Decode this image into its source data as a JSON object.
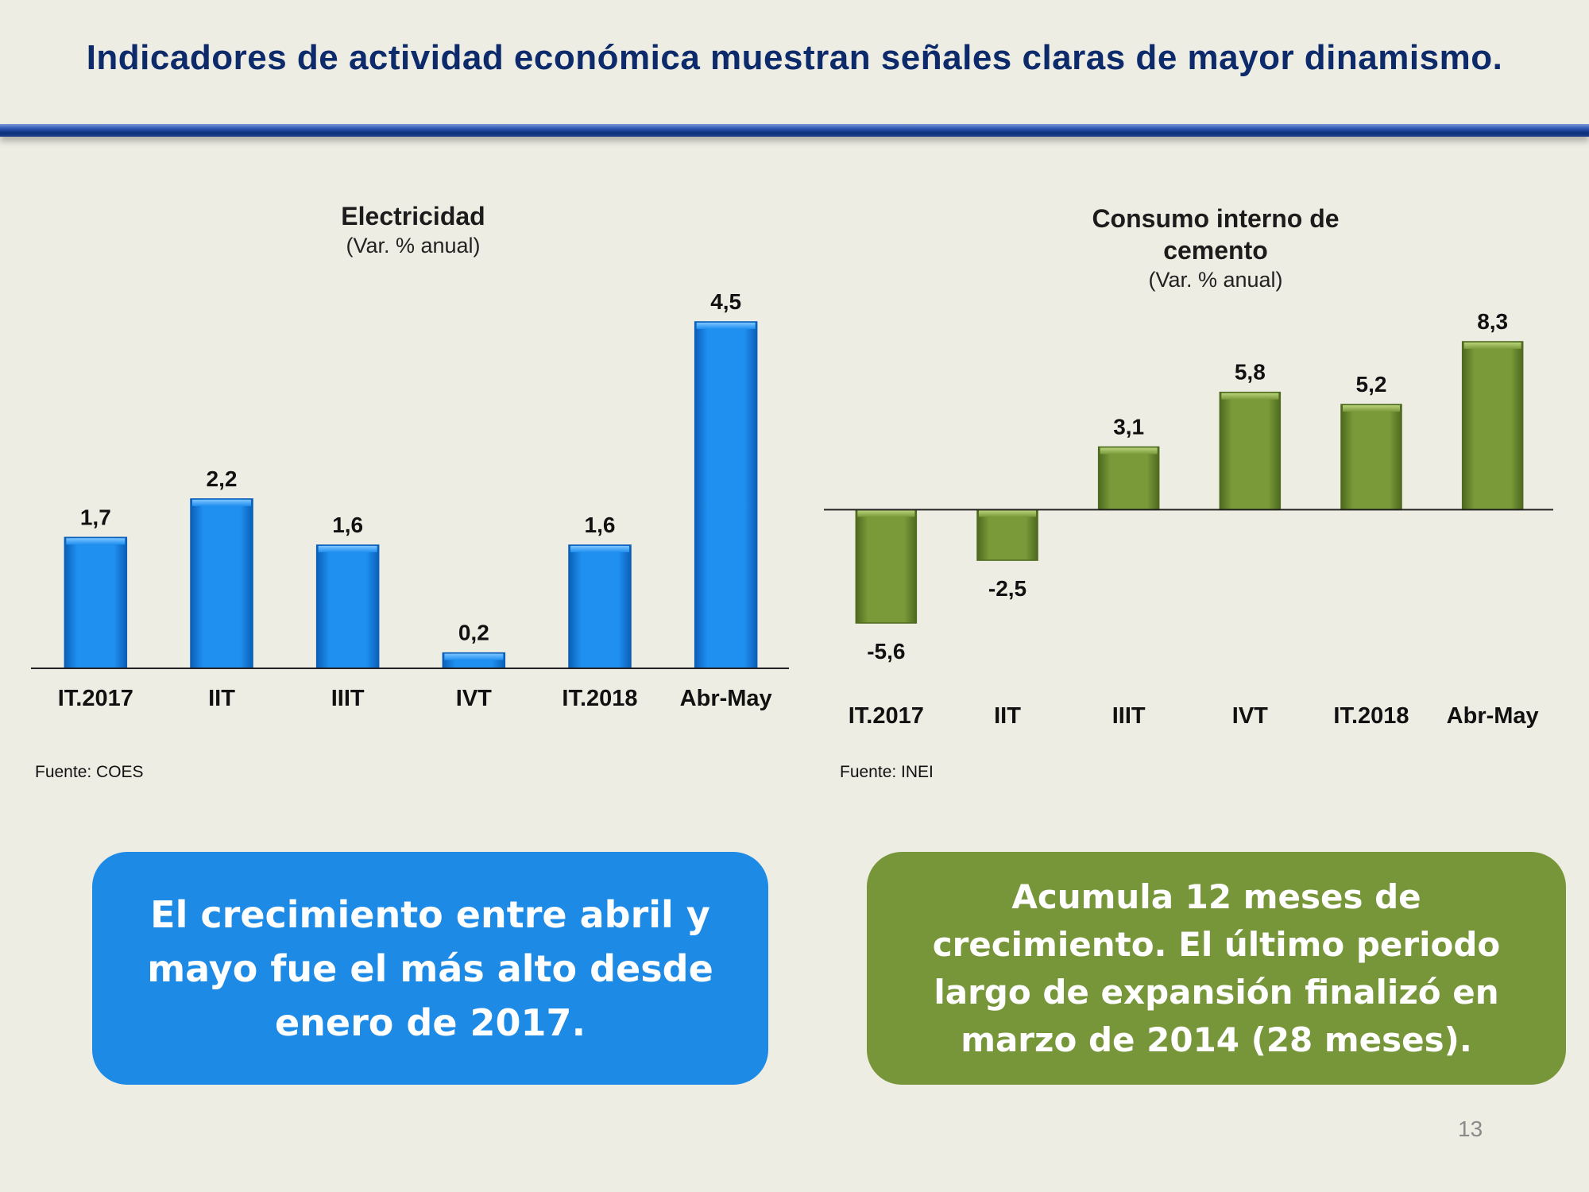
{
  "title": "Indicadores de actividad económica muestran señales claras de mayor dinamismo.",
  "colors": {
    "blue_bar": "#1f8ff0",
    "green_bar": "#7a9a3a",
    "title": "#0d2a6b"
  },
  "chart_data": [
    {
      "type": "bar",
      "title": "Electricidad",
      "subtitle": "(Var. % anual)",
      "categories": [
        "IT.2017",
        "IIT",
        "IIIT",
        "IVT",
        "IT.2018",
        "Abr-May"
      ],
      "values": [
        1.7,
        2.2,
        1.6,
        0.2,
        1.6,
        4.5
      ],
      "value_labels": [
        "1,7",
        "2,2",
        "1,6",
        "0,2",
        "1,6",
        "4,5"
      ],
      "ylim": [
        0,
        4.5
      ],
      "xlabel": "",
      "ylabel": "",
      "grid": false,
      "source": "Fuente: COES"
    },
    {
      "type": "bar",
      "title": "Consumo interno de cemento",
      "title_lines": [
        "Consumo interno de",
        "cemento"
      ],
      "subtitle": "(Var. % anual)",
      "categories": [
        "IT.2017",
        "IIT",
        "IIIT",
        "IVT",
        "IT.2018",
        "Abr-May"
      ],
      "values": [
        -5.6,
        -2.5,
        3.1,
        5.8,
        5.2,
        8.3
      ],
      "value_labels": [
        "-5,6",
        "-2,5",
        "3,1",
        "5,8",
        "5,2",
        "8,3"
      ],
      "ylim": [
        -5.6,
        8.3
      ],
      "xlabel": "",
      "ylabel": "",
      "grid": false,
      "source": "Fuente: INEI"
    }
  ],
  "boxes": {
    "left": "El crecimiento entre abril y mayo fue el más alto desde enero de 2017.",
    "right": "Acumula 12 meses de crecimiento. El último periodo largo de expansión finalizó en marzo de 2014 (28 meses)."
  },
  "page_number": "13"
}
